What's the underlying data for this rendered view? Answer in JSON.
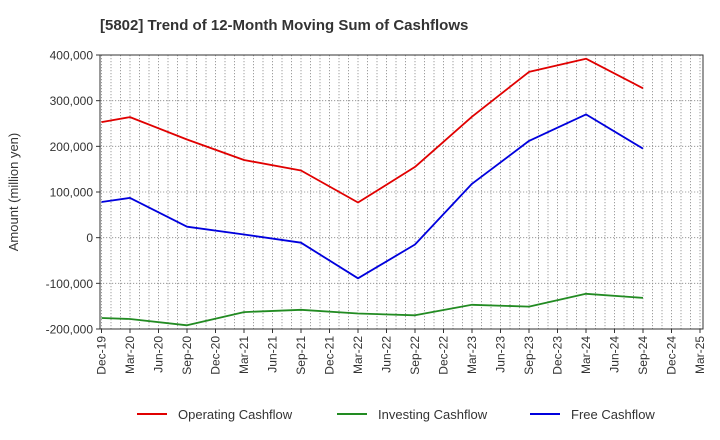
{
  "chart_data": {
    "type": "line",
    "title": "[5802]  Trend of 12-Month Moving Sum of Cashflows",
    "ylabel": "Amount (million yen)",
    "xlabel": "",
    "ylim": [
      -200000,
      400000
    ],
    "yticks": [
      {
        "value": 400000,
        "label": "400,000"
      },
      {
        "value": 300000,
        "label": "300,000"
      },
      {
        "value": 200000,
        "label": "200,000"
      },
      {
        "value": 100000,
        "label": "100,000"
      },
      {
        "value": 0,
        "label": "0"
      },
      {
        "value": -100000,
        "label": "-100,000"
      },
      {
        "value": -200000,
        "label": "-200,000"
      }
    ],
    "categories": [
      "Dec-19",
      "Mar-20",
      "Jun-20",
      "Sep-20",
      "Dec-20",
      "Mar-21",
      "Jun-21",
      "Sep-21",
      "Dec-21",
      "Mar-22",
      "Jun-22",
      "Sep-22",
      "Dec-22",
      "Mar-23",
      "Jun-23",
      "Sep-23",
      "Dec-23",
      "Mar-24",
      "Jun-24",
      "Sep-24",
      "Dec-24",
      "Mar-25"
    ],
    "xticks": [
      "Dec-19",
      "Mar-20",
      "Jun-20",
      "Sep-20",
      "Dec-20",
      "Mar-21",
      "Jun-21",
      "Sep-21",
      "Dec-21",
      "Mar-22",
      "Jun-22",
      "Sep-22",
      "Dec-22",
      "Mar-23",
      "Jun-23",
      "Sep-23",
      "Dec-23",
      "Mar-24",
      "Jun-24",
      "Sep-24",
      "Dec-24",
      "Mar-25"
    ],
    "grid": true,
    "legend_position": "bottom",
    "series": [
      {
        "name": "Operating Cashflow",
        "color": "#e00000",
        "points": [
          {
            "x": "Dec-19",
            "y": 253000
          },
          {
            "x": "Mar-20",
            "y": 264000
          },
          {
            "x": "Sep-20",
            "y": 215000
          },
          {
            "x": "Mar-21",
            "y": 170000
          },
          {
            "x": "Sep-21",
            "y": 147000
          },
          {
            "x": "Mar-22",
            "y": 77000
          },
          {
            "x": "Sep-22",
            "y": 155000
          },
          {
            "x": "Mar-23",
            "y": 265000
          },
          {
            "x": "Sep-23",
            "y": 363000
          },
          {
            "x": "Mar-24",
            "y": 392000
          },
          {
            "x": "Sep-24",
            "y": 327000
          }
        ]
      },
      {
        "name": "Investing Cashflow",
        "color": "#228b22",
        "points": [
          {
            "x": "Dec-19",
            "y": -176000
          },
          {
            "x": "Mar-20",
            "y": -178000
          },
          {
            "x": "Sep-20",
            "y": -192000
          },
          {
            "x": "Mar-21",
            "y": -163000
          },
          {
            "x": "Sep-21",
            "y": -158000
          },
          {
            "x": "Mar-22",
            "y": -166000
          },
          {
            "x": "Sep-22",
            "y": -170000
          },
          {
            "x": "Mar-23",
            "y": -147000
          },
          {
            "x": "Sep-23",
            "y": -151000
          },
          {
            "x": "Mar-24",
            "y": -123000
          },
          {
            "x": "Sep-24",
            "y": -132000
          }
        ]
      },
      {
        "name": "Free Cashflow",
        "color": "#0000dd",
        "points": [
          {
            "x": "Dec-19",
            "y": 78000
          },
          {
            "x": "Mar-20",
            "y": 87000
          },
          {
            "x": "Sep-20",
            "y": 24000
          },
          {
            "x": "Mar-21",
            "y": 7000
          },
          {
            "x": "Sep-21",
            "y": -11000
          },
          {
            "x": "Mar-22",
            "y": -89000
          },
          {
            "x": "Sep-22",
            "y": -15000
          },
          {
            "x": "Mar-23",
            "y": 118000
          },
          {
            "x": "Sep-23",
            "y": 212000
          },
          {
            "x": "Mar-24",
            "y": 270000
          },
          {
            "x": "Sep-24",
            "y": 195000
          }
        ]
      }
    ]
  }
}
